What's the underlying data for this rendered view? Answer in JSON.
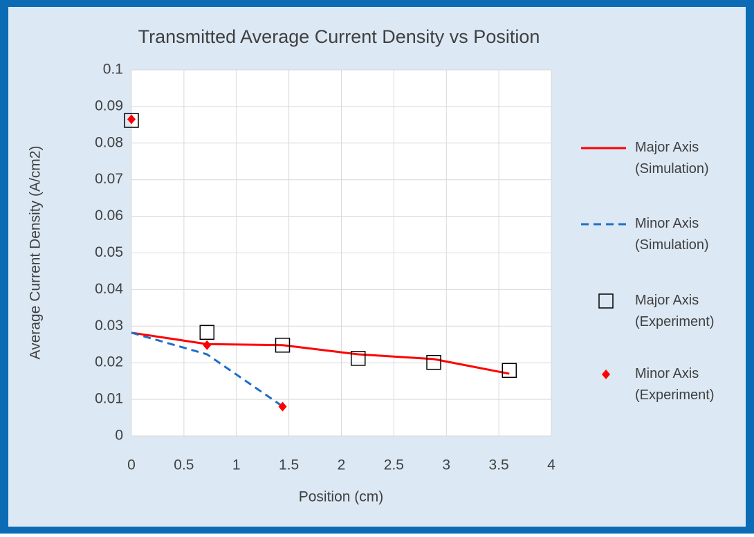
{
  "chart_data": {
    "type": "scatter",
    "title": "Transmitted Average Current Density vs Position",
    "x_label": "Position (cm)",
    "y_label": "Average Current Density (A/cm2)",
    "xlim": [
      0,
      4
    ],
    "xticks": [
      0,
      0.5,
      1,
      1.5,
      2,
      2.5,
      3,
      3.5,
      4
    ],
    "ylim": [
      0,
      0.1
    ],
    "yticks": [
      0,
      0.01,
      0.02,
      0.03,
      0.04,
      0.05,
      0.06,
      0.07,
      0.08,
      0.09,
      0.1
    ],
    "grid": true,
    "legend": "right",
    "series": [
      {
        "name": "Major Axis (Simulation)",
        "color": "#ff0000",
        "style": "line",
        "dash": false,
        "x": [
          0,
          0.72,
          1.44,
          2.16,
          2.88,
          3.6
        ],
        "values": [
          0.0282,
          0.0251,
          0.0248,
          0.0223,
          0.021,
          0.017
        ]
      },
      {
        "name": "Minor Axis (Simulation)",
        "color": "#1f6fc5",
        "style": "line",
        "dash": true,
        "x": [
          0,
          0.72,
          1.44
        ],
        "values": [
          0.0282,
          0.0223,
          0.0081
        ]
      },
      {
        "name": "Major Axis (Experiment)",
        "color": "#000000",
        "style": "marker",
        "marker": "square",
        "x": [
          0,
          0.72,
          1.44,
          2.16,
          2.88,
          3.6
        ],
        "values": [
          0.0862,
          0.0283,
          0.0248,
          0.0212,
          0.0201,
          0.0179
        ]
      },
      {
        "name": "Minor Axis (Experiment)",
        "color": "#ff0000",
        "style": "marker",
        "marker": "diamond",
        "x": [
          0,
          0.72,
          1.44
        ],
        "values": [
          0.0865,
          0.0248,
          0.008
        ]
      }
    ]
  }
}
